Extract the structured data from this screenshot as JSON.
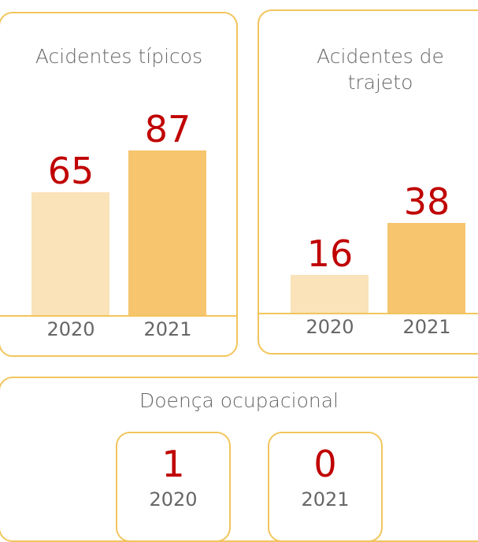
{
  "chart_data": [
    {
      "type": "bar",
      "title": "Acidentes típicos",
      "categories": [
        "2020",
        "2021"
      ],
      "values": [
        65,
        87
      ],
      "colors": [
        "#fae3b8",
        "#f6c56e"
      ],
      "ylim": [
        0,
        100
      ]
    },
    {
      "type": "bar",
      "title": "Acidentes de trajeto",
      "categories": [
        "2020",
        "2021"
      ],
      "values": [
        16,
        38
      ],
      "colors": [
        "#fae3b8",
        "#f6c56e"
      ],
      "ylim": [
        0,
        50
      ]
    },
    {
      "type": "cards",
      "title": "Doença ocupacional",
      "categories": [
        "2020",
        "2021"
      ],
      "values": [
        1,
        0
      ]
    }
  ]
}
